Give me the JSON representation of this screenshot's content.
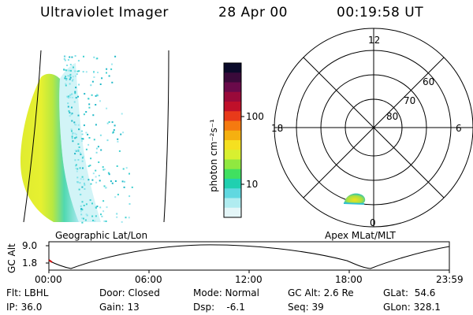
{
  "header": {
    "instrument": "Ultraviolet Imager",
    "date": "28 Apr 00",
    "time": "00:19:58 UT"
  },
  "colorbar": {
    "label": "photon cm⁻²s⁻¹",
    "ticks": [
      "100",
      "10"
    ],
    "colors": [
      "#0a0a2a",
      "#3a0a3a",
      "#6a0a4a",
      "#9a0a3a",
      "#c0102a",
      "#e83a1a",
      "#f57a10",
      "#f5b010",
      "#f5e020",
      "#d8f030",
      "#90e840",
      "#40e060",
      "#20d0b0",
      "#60d8e0",
      "#b0ecf0",
      "#e4f6f8"
    ]
  },
  "polar": {
    "hour_labels": {
      "top": "12",
      "left": "18",
      "right": "6",
      "bottom": "0"
    },
    "lat_labels": [
      "60",
      "70",
      "80"
    ]
  },
  "map_labels": {
    "left": "Geographic Lat/Lon",
    "right": "Apex MLat/MLT"
  },
  "altitude_plot": {
    "ylabel": "GC Alt",
    "yticks": [
      "9.0",
      "1.8"
    ],
    "xticks": [
      "00:00",
      "06:00",
      "12:00",
      "18:00",
      "23:59"
    ]
  },
  "footer": {
    "flt": "Flt: LBHL",
    "ip": "IP: 36.0",
    "door": "Door: Closed",
    "gain": "Gain: 13",
    "mode": "Mode: Normal",
    "dsp": "Dsp:    -6.1",
    "gc_alt": "GC Alt: 2.6 Re",
    "seq": "Seq: 39",
    "glat": "GLat:  54.6",
    "glon": "GLon: 328.1"
  }
}
